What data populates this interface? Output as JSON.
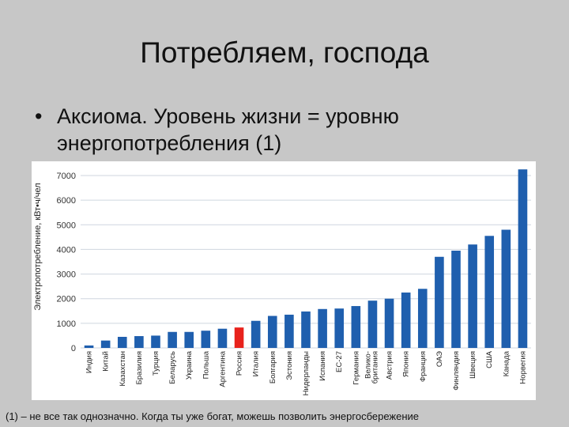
{
  "slide": {
    "title": "Потребляем, господа",
    "bullet_marker": "•",
    "bullet_text": "Аксиома. Уровень жизни = уровню энергопотребления (1)",
    "footnote": "(1) – не все так однозначно. Когда ты уже богат, можешь позволить энергосбережение"
  },
  "chart_data": {
    "type": "bar",
    "ylabel": "Электропотребление, кВт•ч/чел",
    "ylim": [
      0,
      7000
    ],
    "yticks": [
      0,
      1000,
      2000,
      3000,
      4000,
      5000,
      6000,
      7000
    ],
    "grid": true,
    "categories": [
      "Индия",
      "Китай",
      "Казахстан",
      "Бразилия",
      "Турция",
      "Беларусь",
      "Украина",
      "Польша",
      "Аргентина",
      "Россия",
      "Италия",
      "Болгария",
      "Эстония",
      "Нидерланды",
      "Испания",
      "ЕС-27",
      "Германия",
      "Велико-британия",
      "Австрия",
      "Япония",
      "Франция",
      "ОАЭ",
      "Финляндия",
      "Швеция",
      "США",
      "Канада",
      "Норвегия"
    ],
    "values": [
      100,
      300,
      450,
      480,
      500,
      650,
      650,
      700,
      780,
      830,
      1100,
      1300,
      1350,
      1480,
      1580,
      1600,
      1700,
      1920,
      2000,
      2250,
      2400,
      3700,
      3950,
      4200,
      4550,
      4800,
      7250
    ],
    "colors": {
      "default": "#1f5fae",
      "highlight": "#e8221c",
      "highlight_category": "Россия"
    }
  }
}
